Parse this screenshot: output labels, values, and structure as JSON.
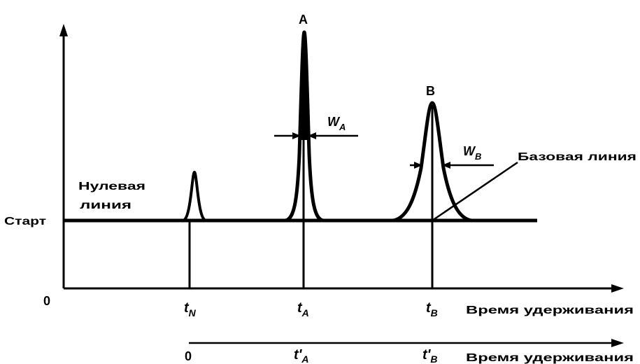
{
  "labels": {
    "start": "Старт",
    "zero_line_1": "Нулевая",
    "zero_line_2": "линия",
    "baseline": "Базовая линия",
    "origin_zero": "0",
    "peak_a": "A",
    "peak_b": "B",
    "width_a_main": "W",
    "width_a_sub": "A",
    "width_b_main": "W",
    "width_b_sub": "B",
    "t_n_main": "t",
    "t_n_sub": "N",
    "t_a_main": "t",
    "t_a_sub": "A",
    "t_b_main": "t",
    "t_b_sub": "B",
    "axis1_label": "Время удерживания",
    "axis2_zero": "0",
    "t_a_prime_main": "t'",
    "t_a_prime_sub": "A",
    "t_b_prime_main": "t'",
    "t_b_prime_sub": "B",
    "axis2_label": "Время удерживания"
  },
  "colors": {
    "ink": "#000000",
    "background": "#ffffff"
  }
}
